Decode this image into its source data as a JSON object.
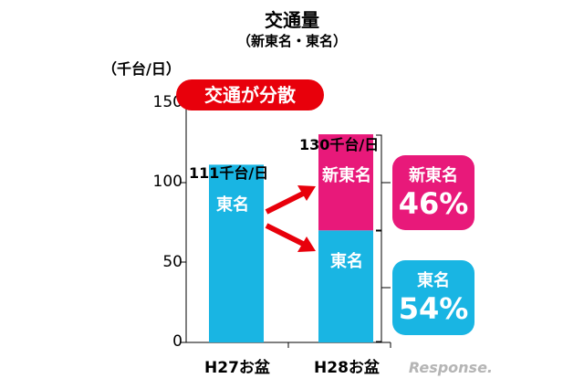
{
  "chart_data": {
    "type": "bar",
    "title": "交通量",
    "subtitle": "（新東名・東名）",
    "ylabel": "（千台/日）",
    "ylim": [
      0,
      150
    ],
    "yticks": [
      "0",
      "50",
      "100",
      "150"
    ],
    "categories": [
      "H27お盆",
      "H28お盆"
    ],
    "series": [
      {
        "name": "東名",
        "values": [
          111,
          70
        ],
        "color": "#19b5e3"
      },
      {
        "name": "新東名",
        "values": [
          0,
          60
        ],
        "color": "#e8197a"
      }
    ],
    "totals": [
      "111千台/日",
      "130千台/日"
    ],
    "segment_labels": {
      "bar1": "東名",
      "bar2_top": "新東名",
      "bar2_bottom": "東名"
    },
    "callout": "交通が分散",
    "share_boxes": [
      {
        "label": "新東名",
        "percent": "46%",
        "color": "#e8197a"
      },
      {
        "label": "東名",
        "percent": "54%",
        "color": "#19b5e3"
      }
    ],
    "watermark": "Response."
  }
}
